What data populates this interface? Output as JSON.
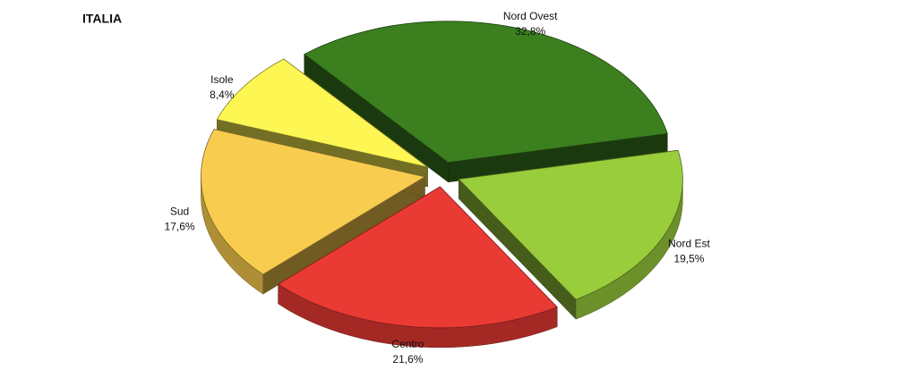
{
  "chart_data": {
    "type": "pie",
    "title": "ITALIA",
    "categories": [
      "Nord Ovest",
      "Nord Est",
      "Centro",
      "Sud",
      "Isole"
    ],
    "values": [
      32.8,
      19.5,
      21.6,
      17.6,
      8.4
    ],
    "value_labels": [
      "32,8%",
      "19,5%",
      "21,6%",
      "17,6%",
      "8,4%"
    ],
    "colors": [
      "#3b7f1f",
      "#9acd3c",
      "#ea3a34",
      "#f8cc4e",
      "#fdf653"
    ]
  }
}
